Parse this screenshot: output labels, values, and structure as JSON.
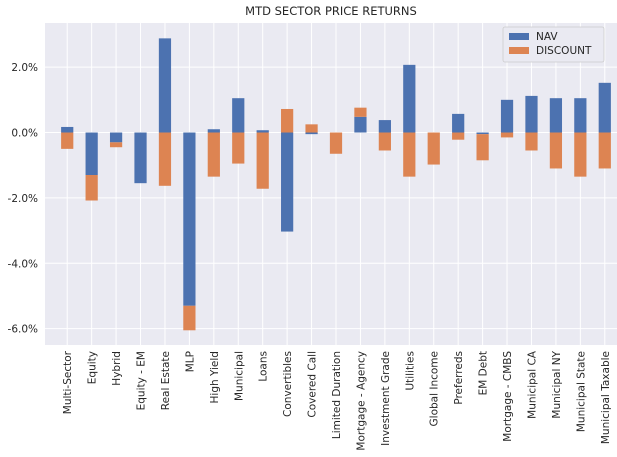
{
  "chart_data": {
    "type": "bar",
    "stacked": true,
    "title": "MTD SECTOR PRICE RETURNS",
    "xlabel": "",
    "ylabel": "",
    "ylim": [
      -6.5,
      3.35
    ],
    "yticks": [
      2.0,
      0.0,
      -2.0,
      -4.0,
      -6.0
    ],
    "ytick_labels": [
      "2.0%",
      "0.0%",
      "-2.0%",
      "-4.0%",
      "-6.0%"
    ],
    "grid": true,
    "legend_position": "top-right",
    "categories": [
      "Multi-Sector",
      "Equity",
      "Hybrid",
      "Equity - EM",
      "Real Estate",
      "MLP",
      "High Yield",
      "Municipal",
      "Loans",
      "Convertibles",
      "Covered Call",
      "Limited Duration",
      "Mortgage - Agency",
      "Investment Grade",
      "Utilities",
      "Global Income",
      "Preferreds",
      "EM Debt",
      "Mortgage - CMBS",
      "Municipal CA",
      "Municipal NY",
      "Municipal State",
      "Municipal Taxable"
    ],
    "series": [
      {
        "name": "NAV",
        "color": "#4c72b0",
        "values": [
          0.17,
          -1.3,
          -0.3,
          -1.55,
          2.88,
          -5.3,
          0.1,
          1.05,
          0.07,
          -3.03,
          -0.05,
          0.0,
          0.48,
          0.38,
          2.07,
          0.0,
          0.57,
          -0.05,
          1.0,
          1.12,
          1.05,
          1.05,
          1.52
        ]
      },
      {
        "name": "DISCOUNT",
        "color": "#dd8452",
        "values": [
          -0.5,
          -0.78,
          -0.15,
          0.0,
          -1.63,
          -0.75,
          -1.35,
          -0.95,
          -1.72,
          0.72,
          0.25,
          -0.65,
          0.28,
          -0.55,
          -1.35,
          -0.98,
          -0.22,
          -0.8,
          -0.15,
          -0.55,
          -1.1,
          -1.35,
          -1.1
        ]
      }
    ]
  }
}
